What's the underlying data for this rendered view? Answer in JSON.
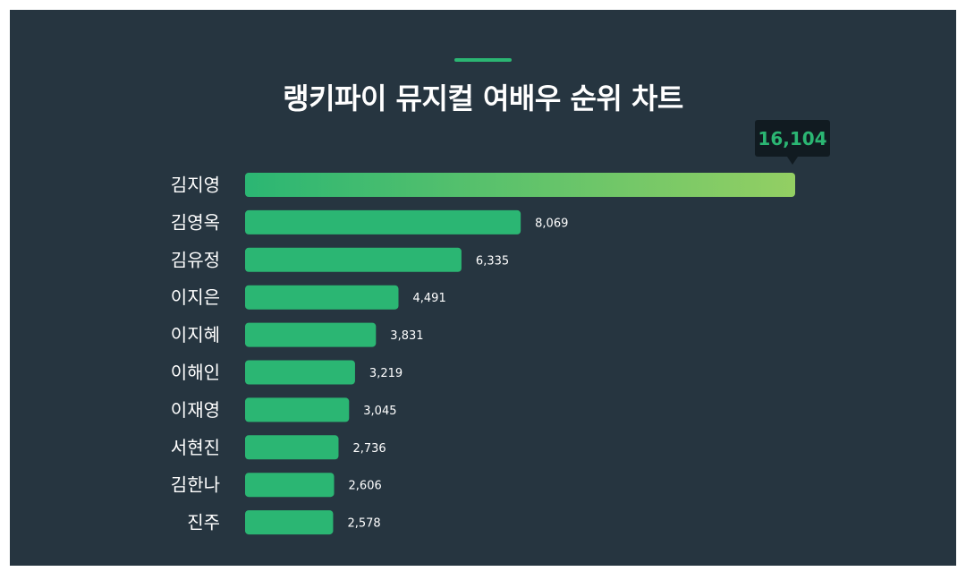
{
  "page": {
    "title": "랭키파이 뮤지컬 여배우 순위 차트"
  },
  "colors": {
    "background": "#263540",
    "bar": "#2bb673",
    "bar_top_gradient_end": "#93cf63",
    "highlight_text": "#2bb673",
    "tooltip_bg": "#111b21",
    "label_text": "#ffffff"
  },
  "chart_data": {
    "type": "bar",
    "orientation": "horizontal",
    "title": "랭키파이 뮤지컬 여배우 순위 차트",
    "categories": [
      "김지영",
      "김영옥",
      "김유정",
      "이지은",
      "이지혜",
      "이해인",
      "이재영",
      "서현진",
      "김한나",
      "진주"
    ],
    "values": [
      16104,
      8069,
      6335,
      4491,
      3831,
      3219,
      3045,
      2736,
      2606,
      2578
    ],
    "value_labels": [
      "16,104",
      "8,069",
      "6,335",
      "4,491",
      "3,831",
      "3,219",
      "3,045",
      "2,736",
      "2,606",
      "2,578"
    ],
    "xlim": [
      0,
      16104
    ],
    "highlighted_index": 0,
    "grid": false,
    "legend": "none"
  }
}
